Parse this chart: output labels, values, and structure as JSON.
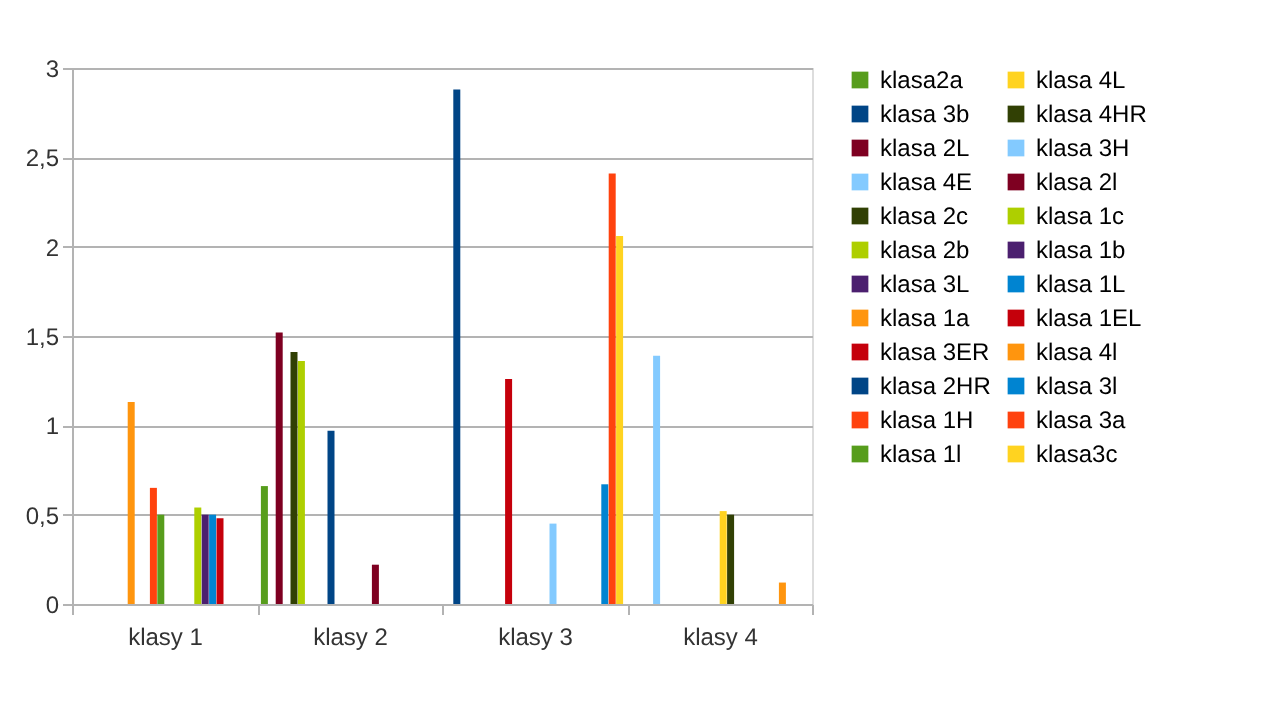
{
  "chart_data": {
    "type": "bar",
    "categories": [
      "klasy 1",
      "klasy 2",
      "klasy 3",
      "klasy 4"
    ],
    "ylim": [
      0,
      3
    ],
    "yticks": [
      0,
      {
        "value": 0.5,
        "label": "0,5"
      },
      1,
      {
        "value": 1.5,
        "label": "1,5"
      },
      2,
      {
        "value": 2.5,
        "label": "2,5"
      },
      3
    ],
    "grid": "y",
    "legend": "right",
    "series": [
      {
        "name": "klasa2a",
        "color": "#579d1c",
        "values": [
          null,
          0.66,
          null,
          null
        ]
      },
      {
        "name": "klasa 3b",
        "color": "#004586",
        "values": [
          null,
          null,
          2.88,
          null
        ]
      },
      {
        "name": "klasa 2L",
        "color": "#7e0021",
        "values": [
          null,
          1.52,
          null,
          null
        ]
      },
      {
        "name": "klasa 4E",
        "color": "#83caff",
        "values": [
          null,
          null,
          null,
          1.39
        ]
      },
      {
        "name": "klasa 2c",
        "color": "#314004",
        "values": [
          null,
          1.41,
          null,
          null
        ]
      },
      {
        "name": "klasa 2b",
        "color": "#aecf00",
        "values": [
          null,
          1.36,
          null,
          null
        ]
      },
      {
        "name": "klasa 3L",
        "color": "#4b1f6f",
        "values": [
          null,
          null,
          null,
          null
        ]
      },
      {
        "name": "klasa 1a",
        "color": "#ff950e",
        "values": [
          1.13,
          null,
          null,
          null
        ]
      },
      {
        "name": "klasa 3ER",
        "color": "#c5000b",
        "values": [
          null,
          null,
          1.26,
          null
        ]
      },
      {
        "name": "klasa 2HR",
        "color": "#004586",
        "values": [
          null,
          0.97,
          null,
          null
        ]
      },
      {
        "name": "klasa 1H",
        "color": "#ff420e",
        "values": [
          0.65,
          null,
          null,
          null
        ]
      },
      {
        "name": "klasa 1l",
        "color": "#579d1c",
        "values": [
          0.5,
          null,
          null,
          null
        ]
      },
      {
        "name": "klasa 4L",
        "color": "#ffd320",
        "values": [
          null,
          null,
          null,
          0.52
        ]
      },
      {
        "name": "klasa 4HR",
        "color": "#314004",
        "values": [
          null,
          null,
          null,
          0.5
        ]
      },
      {
        "name": "klasa 3H",
        "color": "#83caff",
        "values": [
          null,
          null,
          0.45,
          null
        ]
      },
      {
        "name": "klasa 2l",
        "color": "#7e0021",
        "values": [
          null,
          0.22,
          null,
          null
        ]
      },
      {
        "name": "klasa 1c",
        "color": "#aecf00",
        "values": [
          0.54,
          null,
          null,
          null
        ]
      },
      {
        "name": "klasa 1b",
        "color": "#4b1f6f",
        "values": [
          0.5,
          null,
          null,
          null
        ]
      },
      {
        "name": "klasa 1L",
        "color": "#0084d1",
        "values": [
          0.5,
          null,
          null,
          null
        ]
      },
      {
        "name": "klasa 1EL",
        "color": "#c5000b",
        "values": [
          0.48,
          null,
          null,
          null
        ]
      },
      {
        "name": "klasa 4l",
        "color": "#ff950e",
        "values": [
          null,
          null,
          null,
          0.12
        ]
      },
      {
        "name": "klasa 3l",
        "color": "#0084d1",
        "values": [
          null,
          null,
          0.67,
          null
        ]
      },
      {
        "name": "klasa 3a",
        "color": "#ff420e",
        "values": [
          null,
          null,
          2.41,
          null
        ]
      },
      {
        "name": "klasa3c",
        "color": "#ffd320",
        "values": [
          null,
          null,
          2.06,
          null
        ]
      }
    ]
  }
}
